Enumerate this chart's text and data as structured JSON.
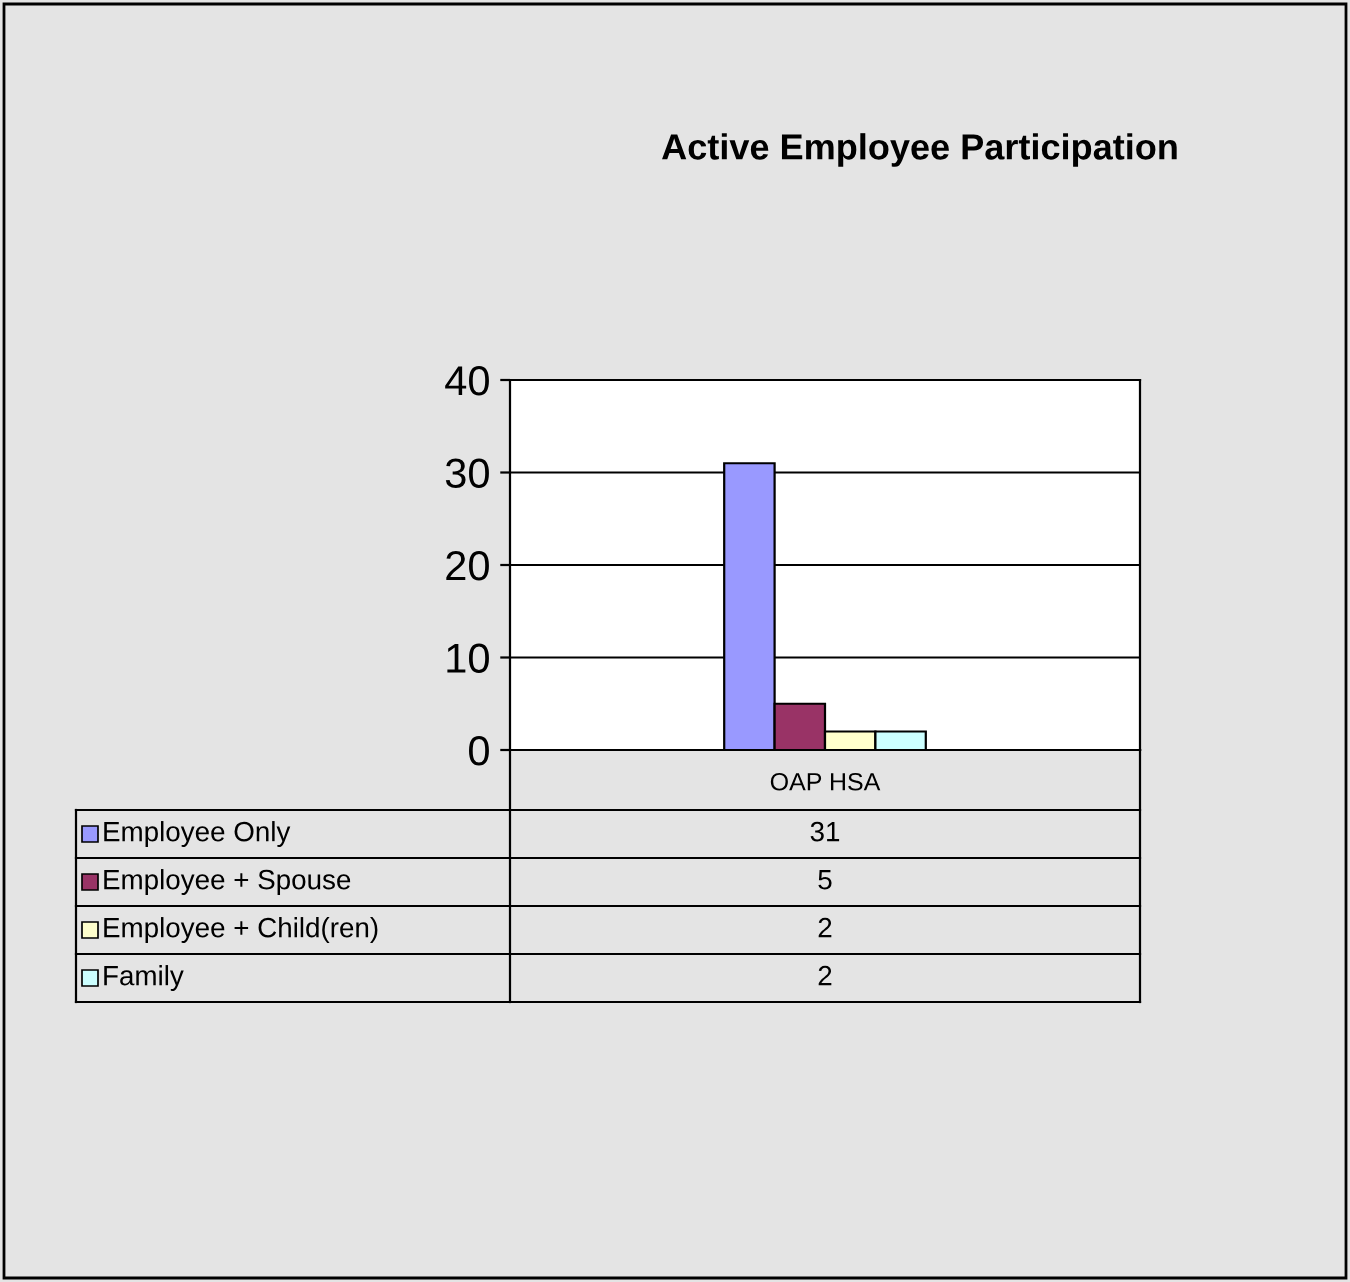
{
  "chart_data": {
    "type": "bar",
    "title": "Active Employee Participation",
    "categories": [
      "OAP HSA"
    ],
    "series": [
      {
        "name": "Employee Only",
        "color": "#9999ff",
        "values": [
          31
        ]
      },
      {
        "name": "Employee + Spouse",
        "color": "#993366",
        "values": [
          5
        ]
      },
      {
        "name": "Employee + Child(ren)",
        "color": "#ffffcc",
        "values": [
          2
        ]
      },
      {
        "name": "Family",
        "color": "#ccffff",
        "values": [
          2
        ]
      }
    ],
    "ylim": [
      0,
      40
    ],
    "yticks": [
      0,
      10,
      20,
      30,
      40
    ],
    "grid": "y",
    "legend": "bottom",
    "annotations": [
      "31",
      "5",
      "2",
      "2"
    ]
  }
}
